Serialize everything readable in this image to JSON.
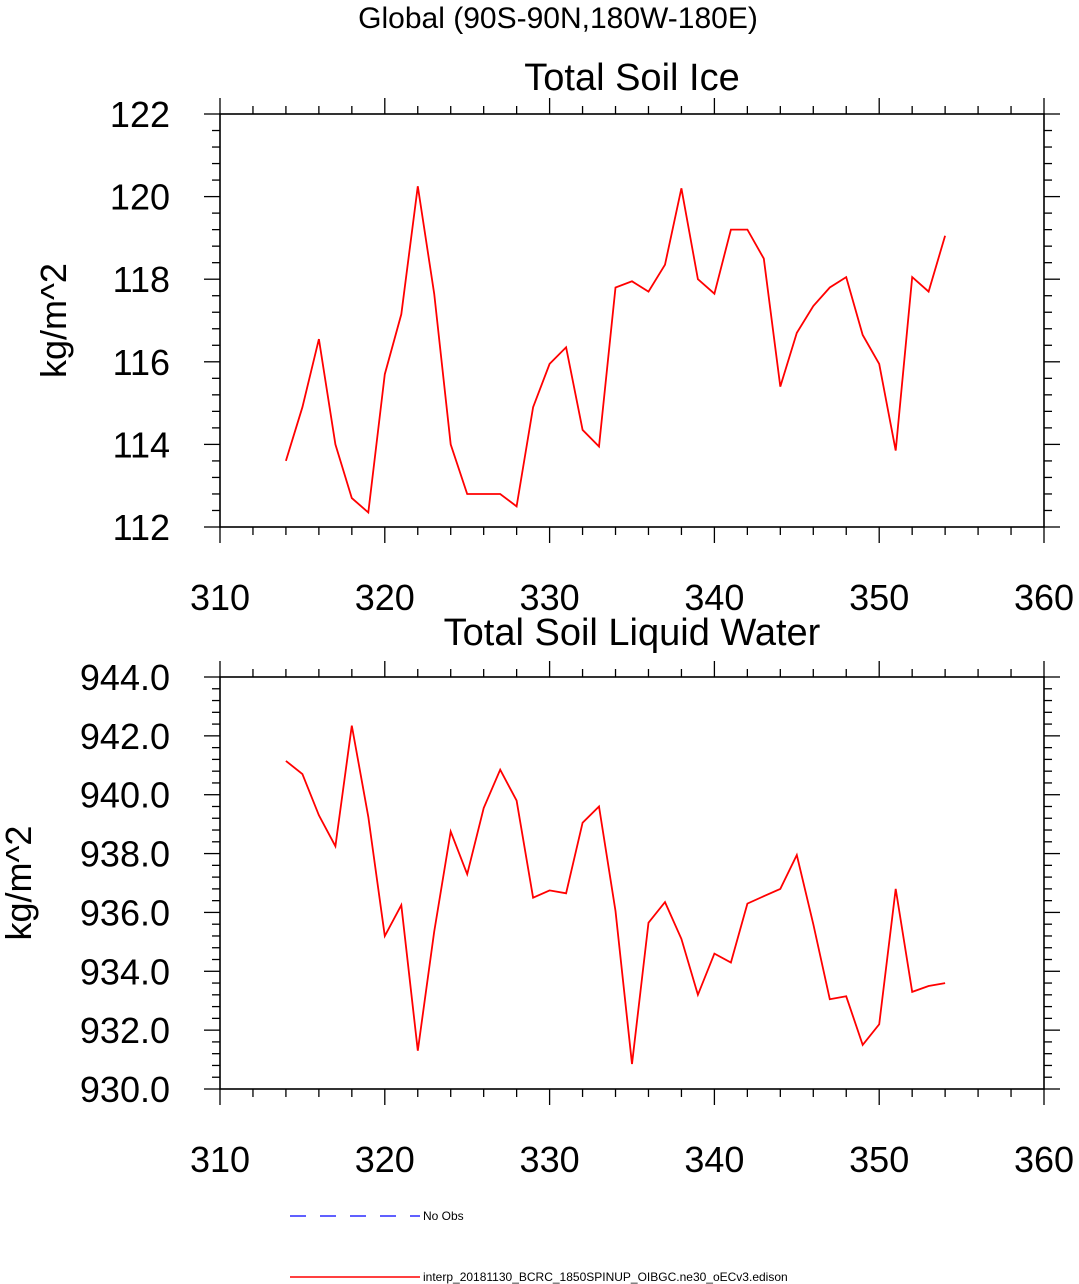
{
  "figure_title": "Global (90S-90N,180W-180E)",
  "legend": [
    {
      "label": "No Obs",
      "color": "#0000ff",
      "style": "dashed"
    },
    {
      "label": "interp_20181130_BCRC_1850SPINUP_OIBGC.ne30_oECv3.edison",
      "color": "#ff0000",
      "style": "solid"
    }
  ],
  "chart_data": [
    {
      "type": "line",
      "title": "Total Soil Ice",
      "xlabel": "",
      "ylabel": "kg/m^2",
      "xlim": [
        310,
        360
      ],
      "ylim": [
        112,
        122
      ],
      "xticks": [
        310,
        320,
        330,
        340,
        350,
        360
      ],
      "xtick_labels": [
        "310",
        "320",
        "330",
        "340",
        "350",
        "360"
      ],
      "yticks": [
        112,
        114,
        116,
        118,
        120,
        122
      ],
      "ytick_labels": [
        "112",
        "114",
        "116",
        "118",
        "120",
        "122"
      ],
      "x_minor_step": 2,
      "y_minor_step": 0.4,
      "series": [
        {
          "name": "interp_20181130_BCRC_1850SPINUP_OIBGC.ne30_oECv3.edison",
          "color": "#ff0000",
          "x": [
            314,
            315,
            316,
            317,
            318,
            319,
            320,
            321,
            322,
            323,
            324,
            325,
            326,
            327,
            328,
            329,
            330,
            331,
            332,
            333,
            334,
            335,
            336,
            337,
            338,
            339,
            340,
            341,
            342,
            343,
            344,
            345,
            346,
            347,
            348,
            349,
            350,
            351,
            352,
            353,
            354
          ],
          "y": [
            113.6,
            114.9,
            116.55,
            114.0,
            112.7,
            112.35,
            115.7,
            117.15,
            120.25,
            117.65,
            114.0,
            112.8,
            112.8,
            112.8,
            112.5,
            114.9,
            115.95,
            116.35,
            114.35,
            113.95,
            117.8,
            117.95,
            117.7,
            118.35,
            120.2,
            118.0,
            117.65,
            119.2,
            119.2,
            118.5,
            115.4,
            116.7,
            117.35,
            117.8,
            118.05,
            116.65,
            115.95,
            113.85,
            118.05,
            117.7,
            119.05
          ]
        }
      ]
    },
    {
      "type": "line",
      "title": "Total Soil Liquid Water",
      "xlabel": "",
      "ylabel": "kg/m^2",
      "xlim": [
        310,
        360
      ],
      "ylim": [
        930,
        944
      ],
      "xticks": [
        310,
        320,
        330,
        340,
        350,
        360
      ],
      "xtick_labels": [
        "310",
        "320",
        "330",
        "340",
        "350",
        "360"
      ],
      "yticks": [
        930,
        932,
        934,
        936,
        938,
        940,
        942,
        944
      ],
      "ytick_labels": [
        "930.0",
        "932.0",
        "934.0",
        "936.0",
        "938.0",
        "940.0",
        "942.0",
        "944.0"
      ],
      "x_minor_step": 2,
      "y_minor_step": 0.4,
      "series": [
        {
          "name": "interp_20181130_BCRC_1850SPINUP_OIBGC.ne30_oECv3.edison",
          "color": "#ff0000",
          "x": [
            314,
            315,
            316,
            317,
            318,
            319,
            320,
            321,
            322,
            323,
            324,
            325,
            326,
            327,
            328,
            329,
            330,
            331,
            332,
            333,
            334,
            335,
            336,
            337,
            338,
            339,
            340,
            341,
            342,
            343,
            344,
            345,
            346,
            347,
            348,
            349,
            350,
            351,
            352,
            353,
            354
          ],
          "y": [
            941.15,
            940.7,
            939.3,
            938.25,
            942.35,
            939.25,
            935.2,
            936.25,
            931.3,
            935.35,
            938.75,
            937.3,
            939.55,
            940.85,
            939.8,
            936.5,
            936.75,
            936.65,
            939.05,
            939.6,
            936.05,
            930.85,
            935.65,
            936.35,
            935.1,
            933.2,
            934.6,
            934.3,
            936.3,
            936.55,
            936.8,
            937.95,
            935.6,
            933.05,
            933.15,
            931.5,
            932.2,
            936.8,
            933.3,
            933.5,
            933.6
          ]
        }
      ]
    }
  ]
}
